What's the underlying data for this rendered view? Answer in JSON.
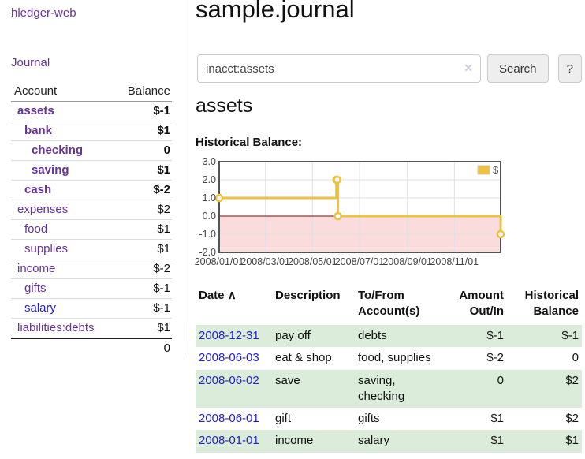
{
  "colors": {
    "link_purple": "#663399",
    "link_blue": "#2222cc",
    "negative": "#7d0d0d",
    "negative_dim": "#c17575",
    "row_green": "#dcecda",
    "chart_line": "#EDC240",
    "chart_negative_bg": "#fbdcdc",
    "chart_zero_line": "#8b0000",
    "chart_border": "#545454",
    "chart_grid": "#e0e0e0"
  },
  "sidebar": {
    "app_title": "hledger-web",
    "journal_label": "Journal",
    "accounts": {
      "col_account": "Account",
      "col_balance": "Balance",
      "rows": [
        {
          "name": "assets",
          "balance": "$-1",
          "depth": 1,
          "bold": true,
          "name_color": "purple",
          "balance_color": "negative"
        },
        {
          "name": "bank",
          "balance": "$1",
          "depth": 2,
          "bold": true,
          "name_color": "purple",
          "balance_color": "normal"
        },
        {
          "name": "checking",
          "balance": "0",
          "depth": 3,
          "bold": true,
          "name_color": "purple",
          "balance_color": "normal"
        },
        {
          "name": "saving",
          "balance": "$1",
          "depth": 3,
          "bold": true,
          "name_color": "purple",
          "balance_color": "normal"
        },
        {
          "name": "cash",
          "balance": "$-2",
          "depth": 2,
          "bold": true,
          "name_color": "purple",
          "balance_color": "negative"
        },
        {
          "name": "expenses",
          "balance": "$2",
          "depth": 1,
          "bold": false,
          "name_color": "purple",
          "balance_color": "normal"
        },
        {
          "name": "food",
          "balance": "$1",
          "depth": 2,
          "bold": false,
          "name_color": "purple",
          "balance_color": "normal"
        },
        {
          "name": "supplies",
          "balance": "$1",
          "depth": 2,
          "bold": false,
          "name_color": "purple",
          "balance_color": "normal"
        },
        {
          "name": "income",
          "balance": "$-2",
          "depth": 1,
          "bold": false,
          "name_color": "purple",
          "balance_color": "negative_dim"
        },
        {
          "name": "gifts",
          "balance": "$-1",
          "depth": 2,
          "bold": false,
          "name_color": "purple",
          "balance_color": "negative_dim"
        },
        {
          "name": "salary",
          "balance": "$-1",
          "depth": 2,
          "bold": false,
          "name_color": "blue",
          "balance_color": "negative_dim"
        },
        {
          "name": "liabilities:debts",
          "balance": "$1",
          "depth": 1,
          "bold": false,
          "name_color": "purple",
          "balance_color": "normal"
        }
      ],
      "total": "0"
    }
  },
  "main": {
    "title": "sample.journal",
    "search": {
      "value": "inacct:assets",
      "clear_icon": "✕",
      "button_label": "Search",
      "help_label": "?"
    },
    "account_heading": "assets",
    "chart_title": "Historical Balance:"
  },
  "chart_data": {
    "type": "line",
    "step": true,
    "title": "Historical Balance",
    "x_range": [
      "2008-01-01",
      "2008-12-31"
    ],
    "ylim": [
      -2,
      3
    ],
    "yticks": [
      "3.0",
      "2.0",
      "1.0",
      "0.0",
      "-1.0",
      "-2.0"
    ],
    "xticks": [
      {
        "date": "2008-01-01",
        "label": "2008/01/01"
      },
      {
        "date": "2008-03-01",
        "label": "2008/03/01"
      },
      {
        "date": "2008-05-01",
        "label": "2008/05/01"
      },
      {
        "date": "2008-07-01",
        "label": "2008/07/01"
      },
      {
        "date": "2008-09-01",
        "label": "2008/09/01"
      },
      {
        "date": "2008-11-01",
        "label": "2008/11/01"
      }
    ],
    "legend": {
      "position": "top-right",
      "entries": [
        {
          "label": "$",
          "color": "#EDC240"
        }
      ]
    },
    "negative_region_shaded": true,
    "grid": true,
    "series": [
      {
        "name": "$",
        "color": "#EDC240",
        "points": [
          {
            "date": "2008-01-01",
            "value": 1
          },
          {
            "date": "2008-06-01",
            "value": 2
          },
          {
            "date": "2008-06-02",
            "value": 2
          },
          {
            "date": "2008-06-03",
            "value": 0
          },
          {
            "date": "2008-12-31",
            "value": -1
          }
        ]
      }
    ]
  },
  "transactions": {
    "headers": {
      "date": "Date",
      "sort_icon": "∧",
      "description": "Description",
      "accounts": "To/From Account(s)",
      "amount": "Amount Out/In",
      "balance": "Historical Balance"
    },
    "rows": [
      {
        "date": "2008-12-31",
        "description": "pay off",
        "accounts": "debts",
        "amount": "$-1",
        "amount_negative": true,
        "balance": "$-1",
        "balance_negative": true
      },
      {
        "date": "2008-06-03",
        "description": "eat & shop",
        "accounts": "food, supplies",
        "amount": "$-2",
        "amount_negative": true,
        "balance": "0",
        "balance_negative": false
      },
      {
        "date": "2008-06-02",
        "description": "save",
        "accounts": "saving, checking",
        "amount": "0",
        "amount_negative": false,
        "balance": "$2",
        "balance_negative": false
      },
      {
        "date": "2008-06-01",
        "description": "gift",
        "accounts": "gifts",
        "amount": "$1",
        "amount_negative": false,
        "balance": "$2",
        "balance_negative": false
      },
      {
        "date": "2008-01-01",
        "description": "income",
        "accounts": "salary",
        "amount": "$1",
        "amount_negative": false,
        "balance": "$1",
        "balance_negative": false
      }
    ]
  }
}
